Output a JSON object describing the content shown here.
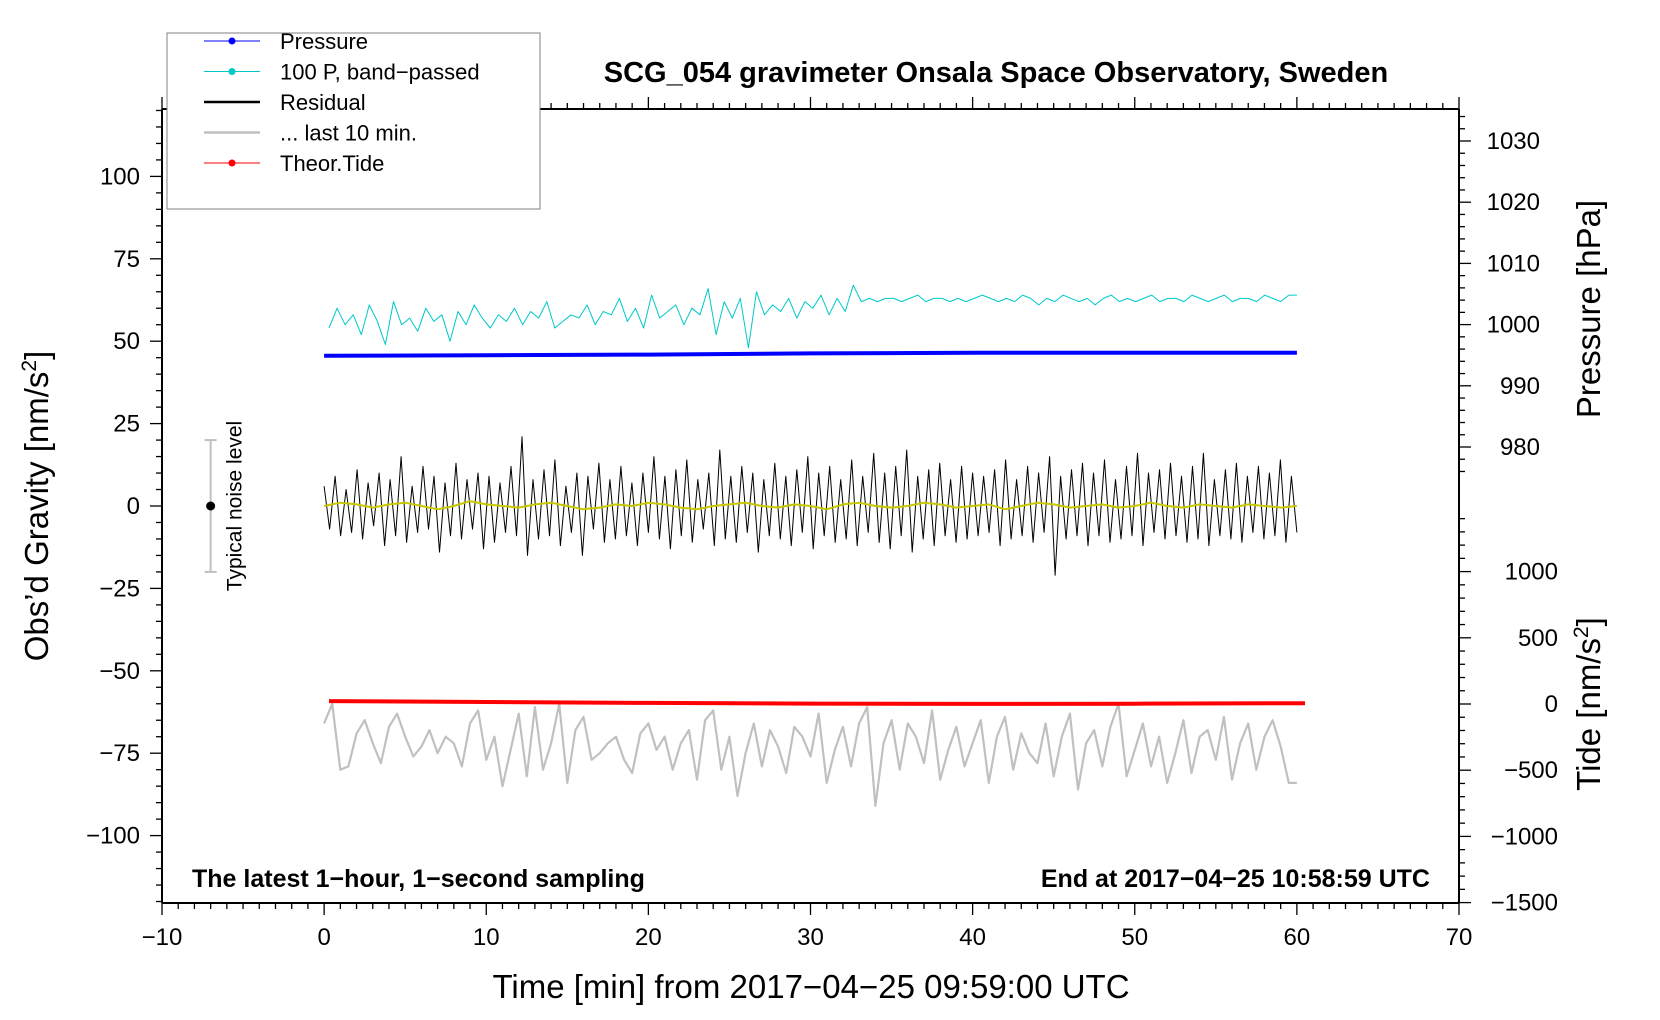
{
  "chart_data": {
    "type": "line",
    "title": "SCG_054 gravimeter Onsala Space Observatory, Sweden",
    "xlabel": "Time [min] from 2017−04−25 09:59:00 UTC",
    "ylabel_left": "Obs’d Gravity [nm/s²]",
    "ylabel_left_base": "Obs’d Gravity [nm/s",
    "ylabel_right_pressure": "Pressure [hPa]",
    "ylabel_right_tide": "Tide [nm/s",
    "unit_sup": "2",
    "unit_close": "]",
    "xlim": [
      -10,
      70
    ],
    "ylim_left": [
      -120,
      120
    ],
    "x_ticks": [
      -10,
      0,
      10,
      20,
      30,
      40,
      50,
      60,
      70
    ],
    "y_ticks_left": [
      -100,
      -75,
      -50,
      -25,
      0,
      25,
      50,
      75,
      100
    ],
    "y_ticks_pressure": [
      980,
      990,
      1000,
      1010,
      1020,
      1030
    ],
    "y_ticks_tide": [
      -1500,
      -1000,
      -500,
      0,
      500,
      1000
    ],
    "annotation_left": "The latest 1−hour, 1−second sampling",
    "annotation_right": "End at 2017−04−25 10:58:59 UTC",
    "noise_bar": {
      "label": "Typical noise level",
      "x": -7,
      "center": 0,
      "half_range": 20
    },
    "legend": {
      "placement": "top-left",
      "entries": [
        {
          "label": "Pressure",
          "color": "#0000ff",
          "marker": true
        },
        {
          "label": "100 P, band−passed",
          "color": "#00c8c8",
          "marker": true
        },
        {
          "label": "Residual",
          "color": "#000000",
          "marker": false
        },
        {
          "label": "... last 10 min.",
          "color": "#c0c0c0",
          "marker": false
        },
        {
          "label": "Theor.Tide",
          "color": "#ff0000",
          "marker": true
        }
      ]
    },
    "series": [
      {
        "name": "Pressure",
        "axis": "pressure",
        "color": "#0000ff",
        "x": [
          0,
          10,
          20,
          30,
          40,
          50,
          60
        ],
        "values": [
          994.9,
          995.0,
          995.1,
          995.3,
          995.4,
          995.4,
          995.4
        ]
      },
      {
        "name": "100 P, band-passed",
        "axis": "left",
        "color": "#00c8c8",
        "x_range": [
          0.3,
          60
        ],
        "values": [
          54,
          60,
          55,
          58,
          52,
          61,
          56,
          49,
          62,
          55,
          57,
          53,
          60,
          56,
          58,
          50,
          59,
          55,
          61,
          57,
          54,
          58,
          56,
          60,
          55,
          59,
          57,
          62,
          54,
          56,
          58,
          57,
          61,
          55,
          59,
          58,
          63,
          56,
          60,
          54,
          64,
          57,
          59,
          61,
          55,
          60,
          58,
          66,
          52,
          62,
          57,
          63,
          48,
          65,
          58,
          61,
          59,
          63,
          57,
          62,
          60,
          64,
          58,
          63,
          59,
          67,
          62,
          63,
          62,
          63,
          63,
          62,
          63,
          64,
          62,
          63,
          63,
          62,
          63,
          62,
          63,
          64,
          63,
          62,
          63,
          62,
          64,
          63,
          61,
          63,
          62,
          64,
          63,
          62,
          63,
          61,
          63,
          64,
          62,
          63,
          62,
          63,
          64,
          62,
          63,
          63,
          62,
          64,
          63,
          62,
          63,
          64,
          62,
          63,
          63,
          62,
          64,
          63,
          62,
          64,
          64
        ]
      },
      {
        "name": "Residual",
        "axis": "left",
        "color": "#000000",
        "x_range": [
          0,
          60
        ],
        "values": [
          6,
          -7,
          9,
          -9,
          5,
          -8,
          11,
          -10,
          7,
          -6,
          10,
          -12,
          8,
          -9,
          15,
          -11,
          6,
          -8,
          12,
          -7,
          9,
          -14,
          7,
          -9,
          13,
          -10,
          8,
          -7,
          10,
          -13,
          9,
          -11,
          7,
          -8,
          12,
          -9,
          21,
          -15,
          8,
          -10,
          11,
          -9,
          14,
          -12,
          6,
          -8,
          10,
          -15,
          9,
          -7,
          13,
          -11,
          8,
          -10,
          12,
          -9,
          7,
          -12,
          10,
          -8,
          15,
          -10,
          9,
          -13,
          11,
          -9,
          14,
          -11,
          8,
          -7,
          10,
          -12,
          17,
          -10,
          9,
          -11,
          12,
          -8,
          10,
          -14,
          8,
          -9,
          13,
          -10,
          9,
          -12,
          11,
          -8,
          15,
          -13,
          10,
          -9,
          12,
          -11,
          8,
          -10,
          14,
          -12,
          9,
          -8,
          16,
          -11,
          10,
          -13,
          12,
          -9,
          17,
          -14,
          9,
          -10,
          11,
          -12,
          13,
          -9,
          8,
          -11,
          12,
          -10,
          10,
          -9,
          9,
          -8,
          11,
          -12,
          14,
          -10,
          8,
          -9,
          12,
          -11,
          10,
          -8,
          15,
          -21,
          9,
          -10,
          11,
          -9,
          13,
          -12,
          10,
          -9,
          14,
          -11,
          8,
          -10,
          12,
          -9,
          16,
          -12,
          10,
          -8,
          11,
          -10,
          13,
          -9,
          9,
          -11,
          12,
          -10,
          16,
          -12,
          8,
          -9,
          11,
          -10,
          13,
          -11,
          9,
          -8,
          12,
          -10,
          10,
          -9,
          14,
          -11,
          9,
          -8
        ]
      },
      {
        "name": "Residual smoothed",
        "axis": "left",
        "color": "#c8c800",
        "x_range": [
          0,
          60
        ],
        "values": [
          0,
          1,
          0.5,
          -0.5,
          0.5,
          1,
          0,
          -1,
          0,
          1.5,
          0.5,
          0,
          -0.5,
          0.5,
          1,
          0,
          -1,
          -0.5,
          0.5,
          0,
          1,
          0.5,
          -0.5,
          -1,
          0,
          0.5,
          1,
          0,
          -0.5,
          0.5,
          0,
          -1,
          0.5,
          1,
          0,
          -0.5,
          0,
          1,
          0.5,
          -0.5,
          0,
          0.5,
          -1,
          0,
          1,
          0.5,
          -0.5,
          0,
          0.5,
          -0.5,
          0,
          1,
          0,
          -0.5,
          0.5,
          0,
          -0.5,
          0.5,
          0,
          -0.5,
          0
        ]
      },
      {
        "name": "... last 10 min.",
        "axis": "left",
        "color": "#c0c0c0",
        "x_range": [
          0,
          60
        ],
        "values": [
          -66,
          -60,
          -80,
          -79,
          -69,
          -65,
          -72,
          -78,
          -67,
          -63,
          -70,
          -76,
          -73,
          -68,
          -75,
          -70,
          -72,
          -79,
          -66,
          -62,
          -77,
          -70,
          -85,
          -74,
          -63,
          -82,
          -61,
          -80,
          -72,
          -60,
          -84,
          -68,
          -64,
          -77,
          -75,
          -72,
          -70,
          -77,
          -81,
          -69,
          -66,
          -74,
          -70,
          -80,
          -72,
          -68,
          -83,
          -65,
          -62,
          -80,
          -70,
          -88,
          -75,
          -66,
          -79,
          -68,
          -73,
          -81,
          -67,
          -70,
          -76,
          -63,
          -84,
          -74,
          -67,
          -79,
          -66,
          -61,
          -91,
          -72,
          -65,
          -80,
          -66,
          -70,
          -78,
          -62,
          -83,
          -74,
          -67,
          -79,
          -72,
          -65,
          -84,
          -70,
          -64,
          -80,
          -69,
          -75,
          -78,
          -66,
          -82,
          -70,
          -63,
          -86,
          -72,
          -68,
          -79,
          -67,
          -60,
          -82,
          -74,
          -66,
          -79,
          -70,
          -84,
          -75,
          -65,
          -81,
          -70,
          -68,
          -77,
          -64,
          -83,
          -72,
          -66,
          -80,
          -70,
          -65,
          -73,
          -84,
          -84
        ]
      },
      {
        "name": "Theor.Tide",
        "axis": "tide",
        "color": "#ff0000",
        "x": [
          0.3,
          10,
          20,
          30,
          40,
          50,
          60.5
        ],
        "values": [
          22,
          15,
          8,
          3,
          1,
          2,
          6
        ]
      }
    ]
  }
}
